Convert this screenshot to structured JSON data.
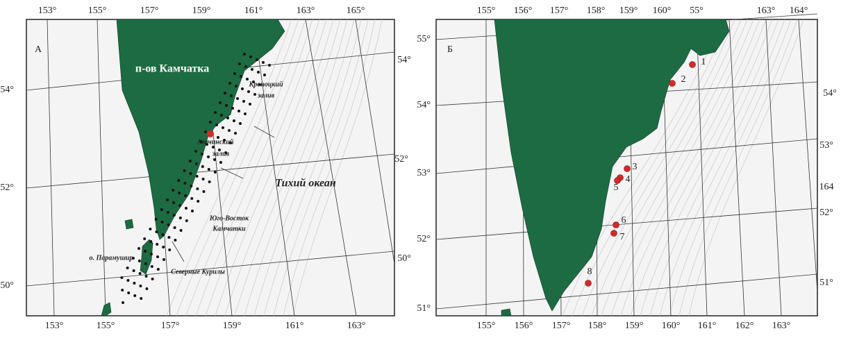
{
  "panels": [
    {
      "label": "А",
      "top_labels": [
        "153°",
        "155°",
        "157°",
        "159°",
        "161°",
        "163°",
        "165°"
      ],
      "bottom_labels": [
        "153°",
        "155°",
        "157°",
        "159°",
        "161°",
        "163°"
      ],
      "left_labels": [
        "54°",
        "52°",
        "50°"
      ],
      "right_labels": [
        "54°",
        "52°",
        "50°"
      ],
      "places": [
        "п-ов Камчатка",
        "Кроноцкий",
        "залив",
        "Авачинский",
        "залив",
        "Тихий океан",
        "Юго-Восток",
        "Камчатки",
        "о. Парамушир",
        "Северные Курилы"
      ]
    },
    {
      "label": "Б",
      "top_labels": [
        "155°",
        "156°",
        "157°",
        "158°",
        "159°",
        "160°",
        "55°",
        "163°",
        "164°"
      ],
      "bottom_labels": [
        "155°",
        "156°",
        "157°",
        "158°",
        "159°",
        "160°",
        "161°",
        "162°",
        "163°"
      ],
      "left_labels": [
        "55°",
        "54°",
        "53°",
        "52°",
        "51°"
      ],
      "right_labels": [
        "54°",
        "53°",
        "164",
        "52°",
        "51°"
      ],
      "stations": [
        "1",
        "2",
        "3",
        "4",
        "5",
        "6",
        "7",
        "8"
      ]
    }
  ]
}
